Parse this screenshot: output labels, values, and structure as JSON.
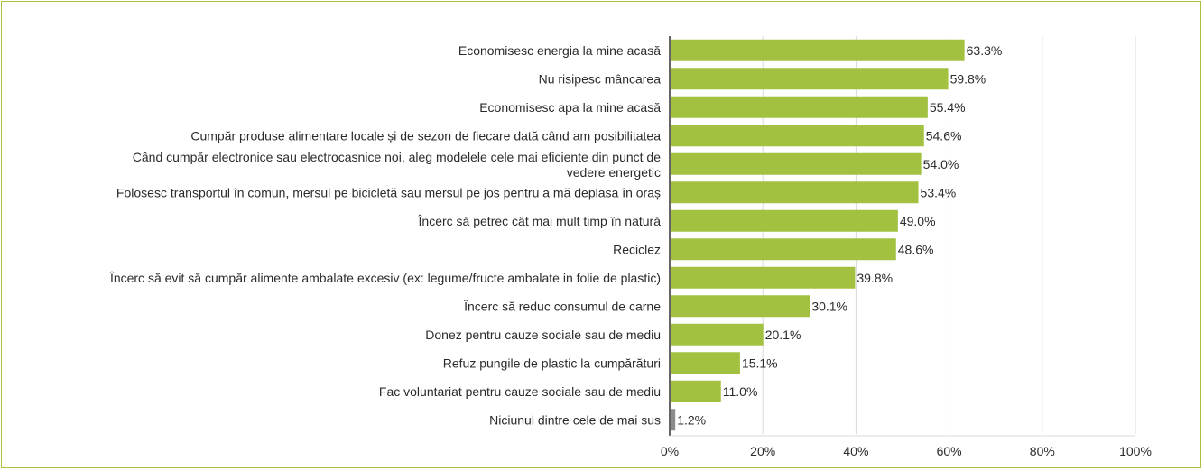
{
  "chart_data": {
    "type": "bar",
    "orientation": "horizontal",
    "title": "",
    "xlabel": "",
    "ylabel": "",
    "xlim": [
      0,
      100
    ],
    "ticks": [
      "0%",
      "20%",
      "40%",
      "60%",
      "80%",
      "100%"
    ],
    "tick_values": [
      0,
      20,
      40,
      60,
      80,
      100
    ],
    "grid": true,
    "categories": [
      "Economisesc energia la mine acasă",
      "Nu risipesc mâncarea",
      "Economisesc apa la mine acasă",
      "Cumpăr produse alimentare locale și de sezon de fiecare dată când am posibilitatea",
      "Când cumpăr electronice sau electrocasnice noi, aleg modelele cele mai eficiente din punct de vedere energetic",
      "Folosesc transportul în comun, mersul pe bicicletă sau mersul pe jos pentru a mă deplasa în oraș",
      "Încerc să petrec cât mai mult timp în natură",
      "Reciclez",
      "Încerc să evit să cumpăr alimente ambalate excesiv (ex: legume/fructe ambalate in folie de plastic)",
      "Încerc să reduc consumul de carne",
      "Donez pentru cauze sociale sau de mediu",
      "Refuz pungile de plastic la cumpărături",
      "Fac voluntariat pentru cauze sociale sau de mediu",
      "Niciunul dintre cele de mai sus"
    ],
    "category_lines": [
      [
        "Economisesc energia la mine acasă"
      ],
      [
        "Nu risipesc mâncarea"
      ],
      [
        "Economisesc apa la mine acasă"
      ],
      [
        "Cumpăr produse alimentare locale și de sezon de fiecare dată când am posibilitatea"
      ],
      [
        "Când cumpăr electronice sau electrocasnice noi, aleg modelele cele mai eficiente din punct de",
        "vedere energetic"
      ],
      [
        "Folosesc transportul în comun, mersul pe bicicletă sau mersul pe jos pentru a mă deplasa în oraș"
      ],
      [
        "Încerc să petrec cât mai mult timp în natură"
      ],
      [
        "Reciclez"
      ],
      [
        "Încerc să evit să cumpăr alimente ambalate excesiv (ex: legume/fructe ambalate in folie de plastic)"
      ],
      [
        "Încerc să reduc consumul de carne"
      ],
      [
        "Donez pentru cauze sociale sau de mediu"
      ],
      [
        "Refuz pungile de plastic la cumpărături"
      ],
      [
        "Fac voluntariat pentru cauze sociale sau de mediu"
      ],
      [
        "Niciunul dintre cele de mai sus"
      ]
    ],
    "values": [
      63.3,
      59.8,
      55.4,
      54.6,
      54.0,
      53.4,
      49.0,
      48.6,
      39.8,
      30.1,
      20.1,
      15.1,
      11.0,
      1.2
    ],
    "value_labels": [
      "63.3%",
      "59.8%",
      "55.4%",
      "54.6%",
      "54.0%",
      "53.4%",
      "49.0%",
      "48.6%",
      "39.8%",
      "30.1%",
      "20.1%",
      "15.1%",
      "11.0%",
      "1.2%"
    ],
    "colors": [
      "#a2c140",
      "#a2c140",
      "#a2c140",
      "#a2c140",
      "#a2c140",
      "#a2c140",
      "#a2c140",
      "#a2c140",
      "#a2c140",
      "#a2c140",
      "#a2c140",
      "#a2c140",
      "#a2c140",
      "#8c8c8c"
    ]
  },
  "style": {
    "frame_color": "#a6c43f",
    "grid_color": "#d9d9d9",
    "axis_color": "#000000"
  }
}
